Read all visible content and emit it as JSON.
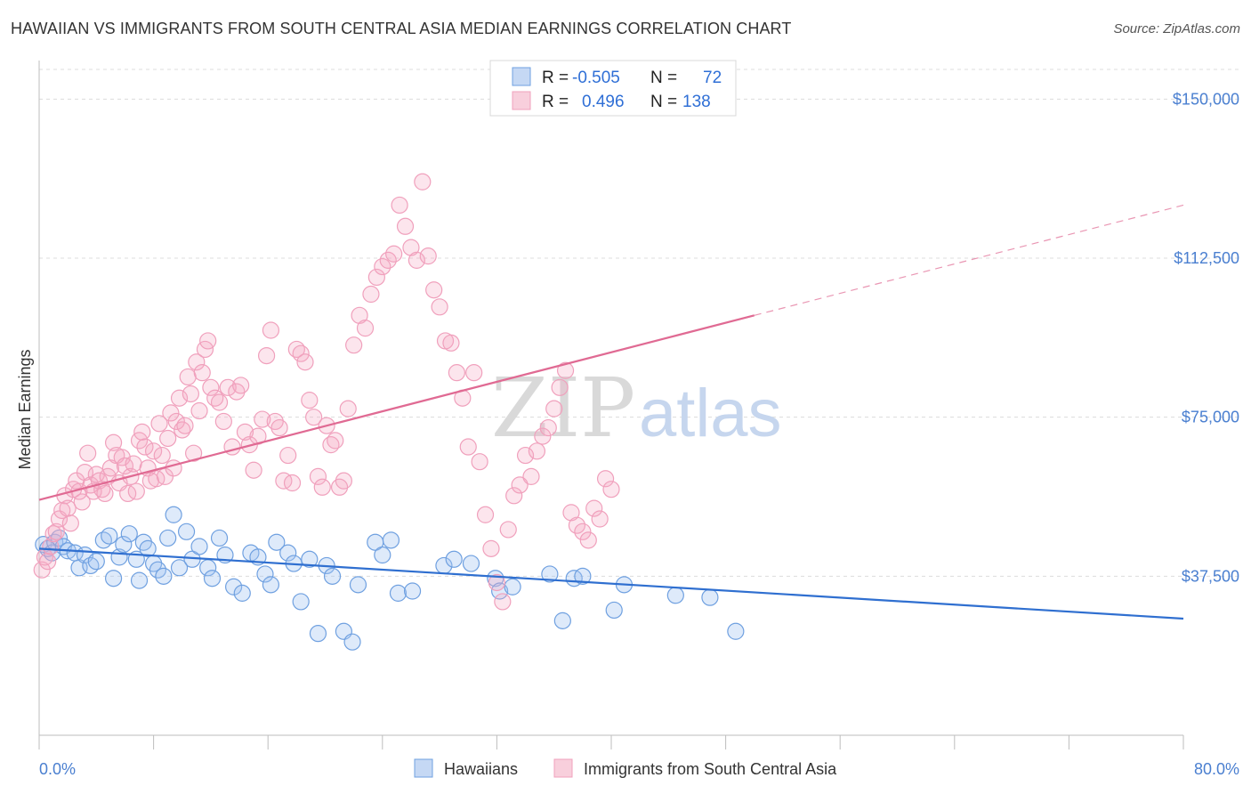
{
  "title": "HAWAIIAN VS IMMIGRANTS FROM SOUTH CENTRAL ASIA MEDIAN EARNINGS CORRELATION CHART",
  "source": "Source: ZipAtlas.com",
  "watermark": {
    "zip": "ZIP",
    "atlas": "atlas"
  },
  "legend_box": {
    "rows": [
      {
        "r_label": "R =",
        "r_value": "-0.505",
        "n_label": "N =",
        "n_value": "72",
        "color": "#6fa0e0"
      },
      {
        "r_label": "R =",
        "r_value": "0.496",
        "n_label": "N =",
        "n_value": "138",
        "color": "#f0a0bc"
      }
    ]
  },
  "bottom_legend": [
    {
      "label": "Hawaiians",
      "color": "#6fa0e0"
    },
    {
      "label": "Immigrants from South Central Asia",
      "color": "#f0a0bc"
    }
  ],
  "chart_data": {
    "type": "scatter",
    "title": "HAWAIIAN VS IMMIGRANTS FROM SOUTH CENTRAL ASIA MEDIAN EARNINGS CORRELATION CHART",
    "xlabel": "",
    "ylabel": "Median Earnings",
    "xlim": [
      0,
      80
    ],
    "ylim": [
      0,
      157000
    ],
    "x_tick_labels": [
      {
        "x": 0,
        "label": "0.0%"
      },
      {
        "x": 80,
        "label": "80.0%"
      }
    ],
    "y_ticks": [
      {
        "y": 37500,
        "label": "$37,500"
      },
      {
        "y": 75000,
        "label": "$75,000"
      },
      {
        "y": 112500,
        "label": "$112,500"
      },
      {
        "y": 150000,
        "label": "$150,000"
      }
    ],
    "grid": true,
    "legend_placement": "bottom",
    "series": [
      {
        "name": "Hawaiians",
        "color": "#6fa0e0",
        "trend_color": "#2f6fd0",
        "trend": {
          "x0": 0,
          "y0": 44000,
          "x1": 80,
          "y1": 27500
        },
        "points": [
          [
            0.3,
            45000
          ],
          [
            0.6,
            44000
          ],
          [
            0.9,
            43000
          ],
          [
            1.1,
            45500
          ],
          [
            1.4,
            46500
          ],
          [
            1.7,
            44500
          ],
          [
            2.0,
            43500
          ],
          [
            2.5,
            43000
          ],
          [
            2.8,
            39500
          ],
          [
            3.2,
            42500
          ],
          [
            3.6,
            40000
          ],
          [
            4.0,
            41000
          ],
          [
            4.5,
            46000
          ],
          [
            4.9,
            47000
          ],
          [
            5.2,
            37000
          ],
          [
            5.6,
            42000
          ],
          [
            5.9,
            45000
          ],
          [
            6.3,
            47500
          ],
          [
            6.8,
            41500
          ],
          [
            7.0,
            36500
          ],
          [
            7.3,
            45500
          ],
          [
            7.6,
            44000
          ],
          [
            8.0,
            40500
          ],
          [
            8.3,
            39000
          ],
          [
            8.7,
            37500
          ],
          [
            9.0,
            46500
          ],
          [
            9.4,
            52000
          ],
          [
            9.8,
            39500
          ],
          [
            10.3,
            48000
          ],
          [
            10.7,
            41500
          ],
          [
            11.2,
            44500
          ],
          [
            11.8,
            39500
          ],
          [
            12.1,
            37000
          ],
          [
            12.6,
            46500
          ],
          [
            13.0,
            42500
          ],
          [
            13.6,
            35000
          ],
          [
            14.2,
            33500
          ],
          [
            14.8,
            43000
          ],
          [
            15.3,
            42000
          ],
          [
            15.8,
            38000
          ],
          [
            16.2,
            35500
          ],
          [
            16.6,
            45500
          ],
          [
            17.4,
            43000
          ],
          [
            17.8,
            40500
          ],
          [
            18.3,
            31500
          ],
          [
            18.9,
            41500
          ],
          [
            19.5,
            24000
          ],
          [
            20.1,
            40000
          ],
          [
            20.5,
            37500
          ],
          [
            21.3,
            24500
          ],
          [
            21.9,
            22000
          ],
          [
            22.3,
            35500
          ],
          [
            23.5,
            45500
          ],
          [
            24.0,
            42500
          ],
          [
            24.6,
            46000
          ],
          [
            25.1,
            33500
          ],
          [
            26.1,
            34000
          ],
          [
            28.3,
            40000
          ],
          [
            29.0,
            41500
          ],
          [
            30.2,
            40500
          ],
          [
            31.9,
            37000
          ],
          [
            32.2,
            34000
          ],
          [
            33.1,
            35000
          ],
          [
            35.7,
            38000
          ],
          [
            36.6,
            27000
          ],
          [
            37.4,
            37000
          ],
          [
            38.0,
            37500
          ],
          [
            40.2,
            29500
          ],
          [
            40.9,
            35500
          ],
          [
            44.5,
            33000
          ],
          [
            46.9,
            32500
          ],
          [
            48.7,
            24500
          ]
        ]
      },
      {
        "name": "Immigrants from South Central Asia",
        "color": "#f0a0bc",
        "trend_color": "#e06a93",
        "trend": {
          "x0": 0,
          "y0": 55500,
          "x1": 50,
          "y1": 99000
        },
        "trend_extension": {
          "x0": 50,
          "y0": 99000,
          "x1": 80,
          "y1": 125000
        },
        "points": [
          [
            0.2,
            39000
          ],
          [
            0.4,
            42000
          ],
          [
            0.6,
            41000
          ],
          [
            0.8,
            44500
          ],
          [
            1.0,
            47500
          ],
          [
            1.2,
            48000
          ],
          [
            1.4,
            51000
          ],
          [
            1.6,
            53000
          ],
          [
            1.8,
            56500
          ],
          [
            2.0,
            53500
          ],
          [
            2.2,
            50000
          ],
          [
            2.4,
            58000
          ],
          [
            2.6,
            60000
          ],
          [
            2.8,
            57500
          ],
          [
            3.0,
            55000
          ],
          [
            3.2,
            62000
          ],
          [
            3.4,
            66500
          ],
          [
            3.6,
            59000
          ],
          [
            3.8,
            57500
          ],
          [
            4.0,
            61500
          ],
          [
            4.2,
            60000
          ],
          [
            4.4,
            58000
          ],
          [
            4.6,
            57000
          ],
          [
            4.8,
            61000
          ],
          [
            5.0,
            63000
          ],
          [
            5.2,
            69000
          ],
          [
            5.4,
            66000
          ],
          [
            5.6,
            59500
          ],
          [
            5.8,
            65500
          ],
          [
            6.0,
            63500
          ],
          [
            6.2,
            57000
          ],
          [
            6.4,
            61000
          ],
          [
            6.6,
            64000
          ],
          [
            6.8,
            57500
          ],
          [
            7.0,
            69500
          ],
          [
            7.2,
            71500
          ],
          [
            7.4,
            68000
          ],
          [
            7.6,
            63000
          ],
          [
            7.8,
            60000
          ],
          [
            8.0,
            67000
          ],
          [
            8.2,
            60500
          ],
          [
            8.4,
            73500
          ],
          [
            8.6,
            66000
          ],
          [
            8.8,
            61000
          ],
          [
            9.0,
            70000
          ],
          [
            9.2,
            76000
          ],
          [
            9.4,
            63000
          ],
          [
            9.6,
            74000
          ],
          [
            9.8,
            79500
          ],
          [
            10.0,
            72000
          ],
          [
            10.2,
            73000
          ],
          [
            10.4,
            84500
          ],
          [
            10.6,
            80500
          ],
          [
            10.8,
            66500
          ],
          [
            11.0,
            88000
          ],
          [
            11.2,
            76500
          ],
          [
            11.4,
            85500
          ],
          [
            11.6,
            91000
          ],
          [
            11.8,
            93000
          ],
          [
            12.0,
            82000
          ],
          [
            12.3,
            79500
          ],
          [
            12.6,
            78500
          ],
          [
            12.9,
            74000
          ],
          [
            13.2,
            82000
          ],
          [
            13.5,
            68000
          ],
          [
            13.8,
            81000
          ],
          [
            14.1,
            82500
          ],
          [
            14.4,
            71500
          ],
          [
            14.7,
            68500
          ],
          [
            15.0,
            62500
          ],
          [
            15.3,
            70500
          ],
          [
            15.6,
            74500
          ],
          [
            15.9,
            89500
          ],
          [
            16.2,
            95500
          ],
          [
            16.5,
            74000
          ],
          [
            16.8,
            72500
          ],
          [
            17.1,
            60000
          ],
          [
            17.4,
            66000
          ],
          [
            17.7,
            59500
          ],
          [
            18.0,
            91000
          ],
          [
            18.3,
            90000
          ],
          [
            18.6,
            88000
          ],
          [
            18.9,
            79000
          ],
          [
            19.2,
            75000
          ],
          [
            19.5,
            61000
          ],
          [
            19.8,
            58500
          ],
          [
            20.1,
            73000
          ],
          [
            20.4,
            68500
          ],
          [
            20.7,
            69500
          ],
          [
            21.0,
            58500
          ],
          [
            21.3,
            60000
          ],
          [
            21.6,
            77000
          ],
          [
            22.0,
            92000
          ],
          [
            22.4,
            99000
          ],
          [
            22.8,
            96000
          ],
          [
            23.2,
            104000
          ],
          [
            23.6,
            108000
          ],
          [
            24.0,
            110500
          ],
          [
            24.4,
            112000
          ],
          [
            24.8,
            113500
          ],
          [
            25.2,
            125000
          ],
          [
            25.6,
            120000
          ],
          [
            26.0,
            115000
          ],
          [
            26.4,
            112000
          ],
          [
            26.8,
            130500
          ],
          [
            27.2,
            113000
          ],
          [
            27.6,
            105000
          ],
          [
            28.0,
            101000
          ],
          [
            28.4,
            93000
          ],
          [
            28.8,
            92500
          ],
          [
            29.2,
            85500
          ],
          [
            29.6,
            79500
          ],
          [
            30.0,
            68000
          ],
          [
            30.4,
            85500
          ],
          [
            30.8,
            64500
          ],
          [
            31.2,
            52000
          ],
          [
            31.6,
            44000
          ],
          [
            32.0,
            36000
          ],
          [
            32.4,
            31500
          ],
          [
            32.8,
            48500
          ],
          [
            33.2,
            56500
          ],
          [
            33.6,
            59000
          ],
          [
            34.0,
            66000
          ],
          [
            34.4,
            61000
          ],
          [
            34.8,
            67000
          ],
          [
            35.2,
            70500
          ],
          [
            35.6,
            72500
          ],
          [
            36.0,
            77000
          ],
          [
            36.4,
            82000
          ],
          [
            36.8,
            86000
          ],
          [
            37.2,
            52500
          ],
          [
            37.6,
            49500
          ],
          [
            38.0,
            48000
          ],
          [
            38.4,
            46000
          ],
          [
            38.8,
            53500
          ],
          [
            39.2,
            51000
          ],
          [
            39.6,
            60500
          ],
          [
            40.0,
            58000
          ]
        ]
      }
    ]
  }
}
